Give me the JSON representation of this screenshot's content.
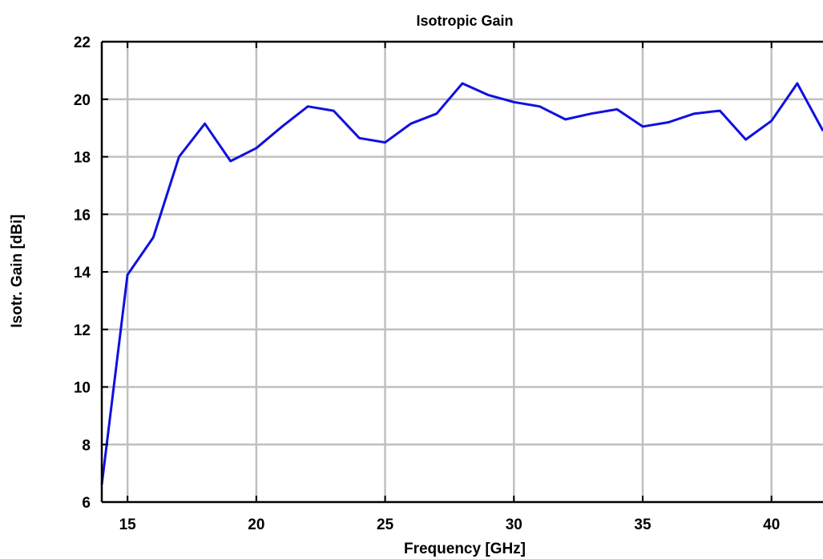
{
  "chart_data": {
    "type": "line",
    "title": "Isotropic Gain",
    "xlabel": "Frequency [GHz]",
    "ylabel": "Isotr. Gain [dBi]",
    "xlim": [
      14,
      42
    ],
    "ylim": [
      6,
      22
    ],
    "xticks": [
      15,
      20,
      25,
      30,
      35,
      40
    ],
    "yticks": [
      6,
      8,
      10,
      12,
      14,
      16,
      18,
      20,
      22
    ],
    "grid": true,
    "colors": {
      "line": "#1010e0",
      "grid": "#c0c0c0",
      "axes": "#000000"
    },
    "series": [
      {
        "x": [
          14,
          15,
          16,
          17,
          18,
          19,
          20,
          21,
          22,
          23,
          24,
          25,
          26,
          27,
          28,
          29,
          30,
          31,
          32,
          33,
          34,
          35,
          36,
          37,
          38,
          39,
          40,
          41,
          42
        ],
        "y": [
          6.6,
          13.9,
          15.2,
          18.0,
          19.15,
          17.85,
          18.3,
          19.05,
          19.75,
          19.6,
          18.65,
          18.5,
          19.15,
          19.5,
          20.55,
          20.15,
          19.9,
          19.75,
          19.3,
          19.5,
          19.65,
          19.05,
          19.2,
          19.5,
          19.6,
          18.6,
          19.25,
          20.55,
          18.9
        ]
      }
    ]
  }
}
